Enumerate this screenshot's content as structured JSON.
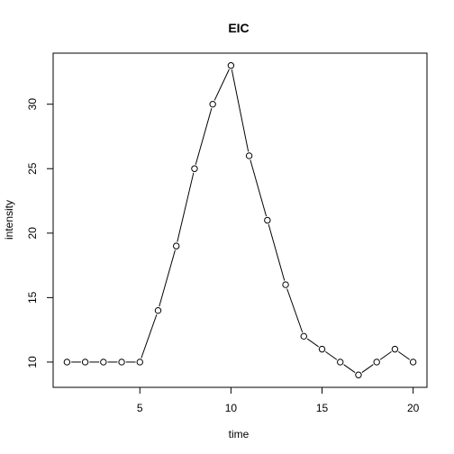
{
  "chart_data": {
    "type": "line",
    "title": "EIC",
    "xlabel": "time",
    "ylabel": "intensity",
    "x": [
      1,
      2,
      3,
      4,
      5,
      6,
      7,
      8,
      9,
      10,
      11,
      12,
      13,
      14,
      15,
      16,
      17,
      18,
      19,
      20
    ],
    "series": [
      {
        "values": [
          10,
          10,
          10,
          10,
          10,
          14,
          19,
          25,
          30,
          33,
          26,
          21,
          16,
          12,
          11,
          10,
          9,
          10,
          11,
          10
        ]
      }
    ],
    "xlim": [
      0.24,
      20.76
    ],
    "ylim": [
      8.04,
      33.96
    ],
    "xticks": [
      5,
      10,
      15,
      20
    ],
    "yticks": [
      10,
      15,
      20,
      25,
      30
    ],
    "xtick_labels": [
      "5",
      "10",
      "15",
      "20"
    ],
    "ytick_labels": [
      "10",
      "15",
      "20",
      "25",
      "30"
    ],
    "grid": false,
    "legend": "none",
    "markers": "open-circle",
    "line_color": "#000000"
  }
}
